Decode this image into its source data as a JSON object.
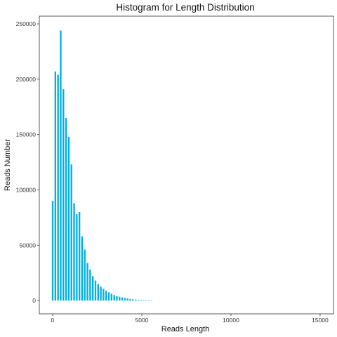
{
  "chart_data": {
    "type": "bar",
    "title": "Histogram for Length Distribution",
    "xlabel": "Reads Length",
    "ylabel": "Reads Number",
    "xlim": [
      -750,
      15750
    ],
    "ylim": [
      -12000,
      257000
    ],
    "x_ticks": [
      0,
      5000,
      10000,
      15000
    ],
    "x_tick_labels": [
      "0",
      "5000",
      "10000",
      "15000"
    ],
    "y_ticks": [
      0,
      50000,
      100000,
      150000,
      200000,
      250000
    ],
    "y_tick_labels": [
      "0",
      "50000",
      "100000",
      "150000",
      "200000",
      "250000"
    ],
    "bar_color": "#00b0e0",
    "grid": false,
    "bins": [
      {
        "x": 0,
        "y": 90000
      },
      {
        "x": 150,
        "y": 207000
      },
      {
        "x": 300,
        "y": 204000
      },
      {
        "x": 450,
        "y": 244000
      },
      {
        "x": 600,
        "y": 191000
      },
      {
        "x": 750,
        "y": 165000
      },
      {
        "x": 900,
        "y": 148000
      },
      {
        "x": 1050,
        "y": 123000
      },
      {
        "x": 1200,
        "y": 88000
      },
      {
        "x": 1350,
        "y": 78000
      },
      {
        "x": 1500,
        "y": 80000
      },
      {
        "x": 1650,
        "y": 58000
      },
      {
        "x": 1800,
        "y": 46000
      },
      {
        "x": 1950,
        "y": 34000
      },
      {
        "x": 2100,
        "y": 28000
      },
      {
        "x": 2250,
        "y": 22000
      },
      {
        "x": 2400,
        "y": 18000
      },
      {
        "x": 2550,
        "y": 15000
      },
      {
        "x": 2700,
        "y": 12500
      },
      {
        "x": 2850,
        "y": 10500
      },
      {
        "x": 3000,
        "y": 8800
      },
      {
        "x": 3150,
        "y": 7400
      },
      {
        "x": 3300,
        "y": 6100
      },
      {
        "x": 3450,
        "y": 5000
      },
      {
        "x": 3600,
        "y": 4100
      },
      {
        "x": 3750,
        "y": 3400
      },
      {
        "x": 3900,
        "y": 2800
      },
      {
        "x": 4050,
        "y": 2300
      },
      {
        "x": 4200,
        "y": 1800
      },
      {
        "x": 4350,
        "y": 1400
      },
      {
        "x": 4500,
        "y": 1100
      },
      {
        "x": 4650,
        "y": 850
      },
      {
        "x": 4800,
        "y": 650
      },
      {
        "x": 4950,
        "y": 500
      },
      {
        "x": 5100,
        "y": 380
      },
      {
        "x": 5250,
        "y": 280
      },
      {
        "x": 5400,
        "y": 200
      },
      {
        "x": 5550,
        "y": 130
      }
    ]
  }
}
